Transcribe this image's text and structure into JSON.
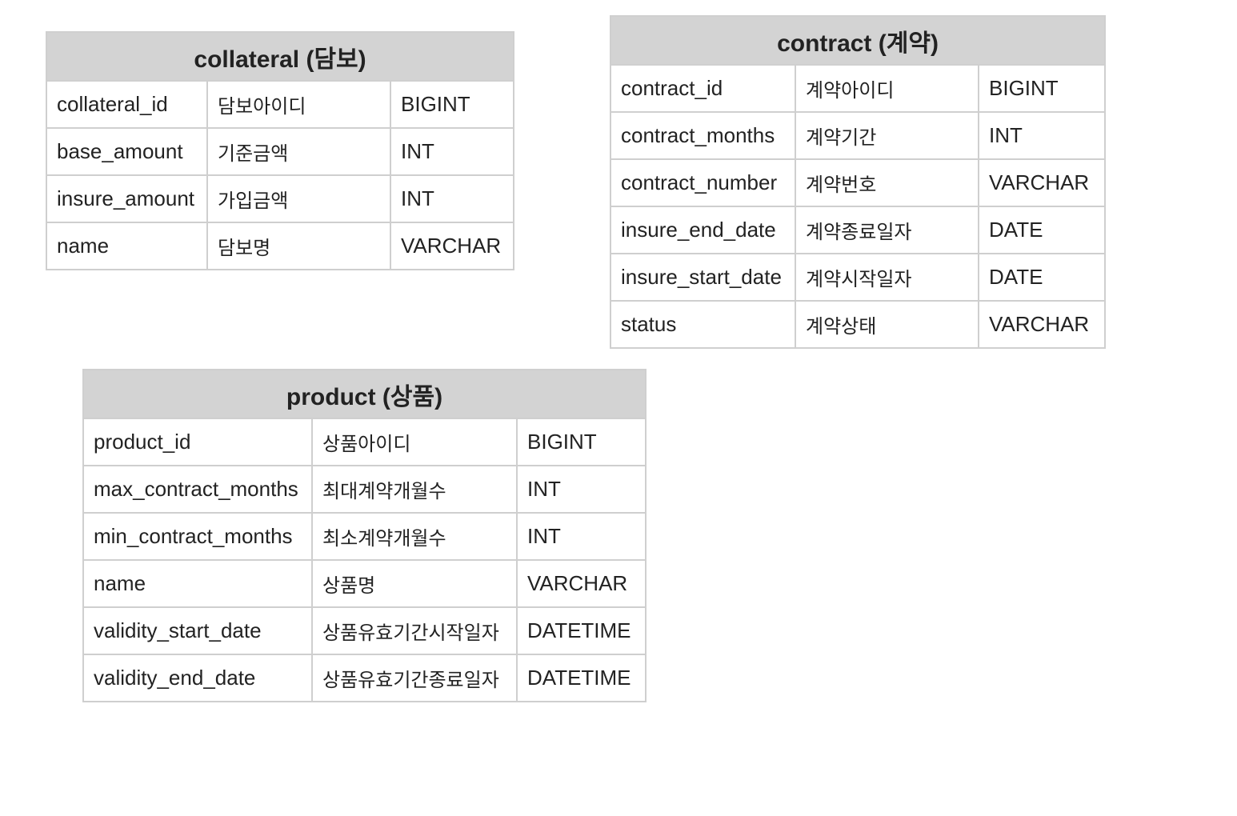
{
  "tables": {
    "collateral": {
      "title": "collateral (담보)",
      "rows": [
        {
          "column": "collateral_id",
          "label": "담보아이디",
          "type": "BIGINT"
        },
        {
          "column": "base_amount",
          "label": "기준금액",
          "type": "INT"
        },
        {
          "column": "insure_amount",
          "label": "가입금액",
          "type": "INT"
        },
        {
          "column": "name",
          "label": "담보명",
          "type": "VARCHAR"
        }
      ]
    },
    "contract": {
      "title": "contract (계약)",
      "rows": [
        {
          "column": "contract_id",
          "label": "계약아이디",
          "type": "BIGINT"
        },
        {
          "column": "contract_months",
          "label": "계약기간",
          "type": "INT"
        },
        {
          "column": "contract_number",
          "label": "계약번호",
          "type": "VARCHAR"
        },
        {
          "column": "insure_end_date",
          "label": "계약종료일자",
          "type": "DATE"
        },
        {
          "column": "insure_start_date",
          "label": "계약시작일자",
          "type": "DATE"
        },
        {
          "column": "status",
          "label": "계약상태",
          "type": "VARCHAR"
        }
      ]
    },
    "product": {
      "title": "product (상품)",
      "rows": [
        {
          "column": "product_id",
          "label": "상품아이디",
          "type": "BIGINT"
        },
        {
          "column": "max_contract_months",
          "label": "최대계약개월수",
          "type": "INT"
        },
        {
          "column": "min_contract_months",
          "label": "최소계약개월수",
          "type": "INT"
        },
        {
          "column": "name",
          "label": "상품명",
          "type": "VARCHAR"
        },
        {
          "column": "validity_start_date",
          "label": "상품유효기간시작일자",
          "type": "DATETIME"
        },
        {
          "column": "validity_end_date",
          "label": "상품유효기간종료일자",
          "type": "DATETIME"
        }
      ]
    }
  },
  "colors": {
    "header_bg": "#d3d3d3",
    "border": "#cfcfcf",
    "text": "#222222"
  }
}
